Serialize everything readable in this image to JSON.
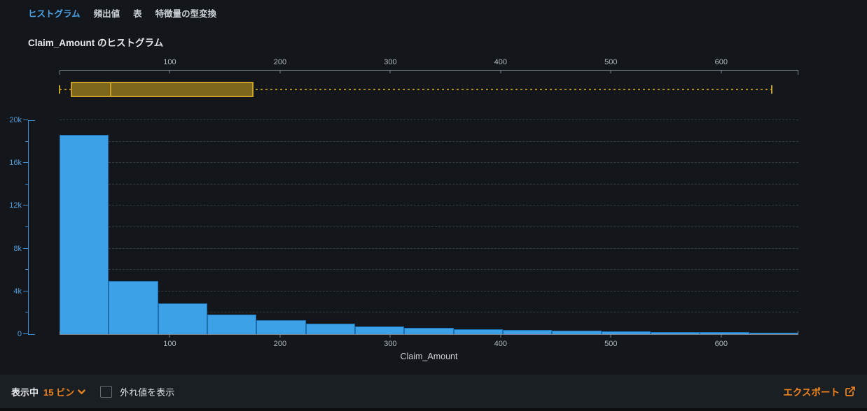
{
  "tabs": [
    {
      "label": "ヒストグラム",
      "active": true
    },
    {
      "label": "頻出値",
      "active": false
    },
    {
      "label": "表",
      "active": false
    },
    {
      "label": "特徴量の型変換",
      "active": false
    }
  ],
  "title": "Claim_Amount のヒストグラム",
  "chart_data": [
    {
      "type": "boxplot",
      "orientation": "horizontal",
      "axis": {
        "min": 0,
        "max": 670,
        "ticks": [
          100,
          200,
          300,
          400,
          500,
          600
        ]
      },
      "whisker_low": 0,
      "q1": 10,
      "median": 46,
      "q3": 176,
      "whisker_high": 646,
      "box_fill": "#7c661b",
      "box_border": "#c7a028"
    },
    {
      "type": "bar",
      "title": "Claim_Amount のヒストグラム",
      "xlabel": "Claim_Amount",
      "ylabel": "",
      "bin_start": 0,
      "bin_width": 44.7,
      "bin_count": 15,
      "values": [
        18600,
        5000,
        2850,
        1850,
        1300,
        1000,
        750,
        600,
        480,
        400,
        340,
        270,
        220,
        170,
        120
      ],
      "xlim": [
        0,
        670
      ],
      "ylim": [
        0,
        20000
      ],
      "x_ticks": [
        100,
        200,
        300,
        400,
        500,
        600
      ],
      "y_ticks": [
        {
          "v": 0,
          "label": "0"
        },
        {
          "v": 4000,
          "label": "4k"
        },
        {
          "v": 8000,
          "label": "8k"
        },
        {
          "v": 12000,
          "label": "12k"
        },
        {
          "v": 16000,
          "label": "16k"
        },
        {
          "v": 20000,
          "label": "20k"
        }
      ],
      "y_minor_step": 2000,
      "grid": "horizontal dashed every 2000",
      "legend": "none",
      "bar_color": "#3da1e8"
    }
  ],
  "footer": {
    "showing_label": "表示中",
    "bins_value": "15 ビン",
    "outliers_label": "外れ値を表示",
    "outliers_checked": false,
    "export_label": "エクスポート"
  },
  "colors": {
    "background": "#13161a",
    "footer_background": "#1a1f24",
    "accent_blue": "#4aa2e6",
    "bar_blue": "#3da1e8",
    "axis_blue": "#3f8fd2",
    "accent_orange": "#f0831d",
    "box_gold_fill": "#7c661b",
    "box_gold_border": "#c7a028",
    "axis_gray": "#7d848d",
    "text_white": "#e6e8ea"
  }
}
